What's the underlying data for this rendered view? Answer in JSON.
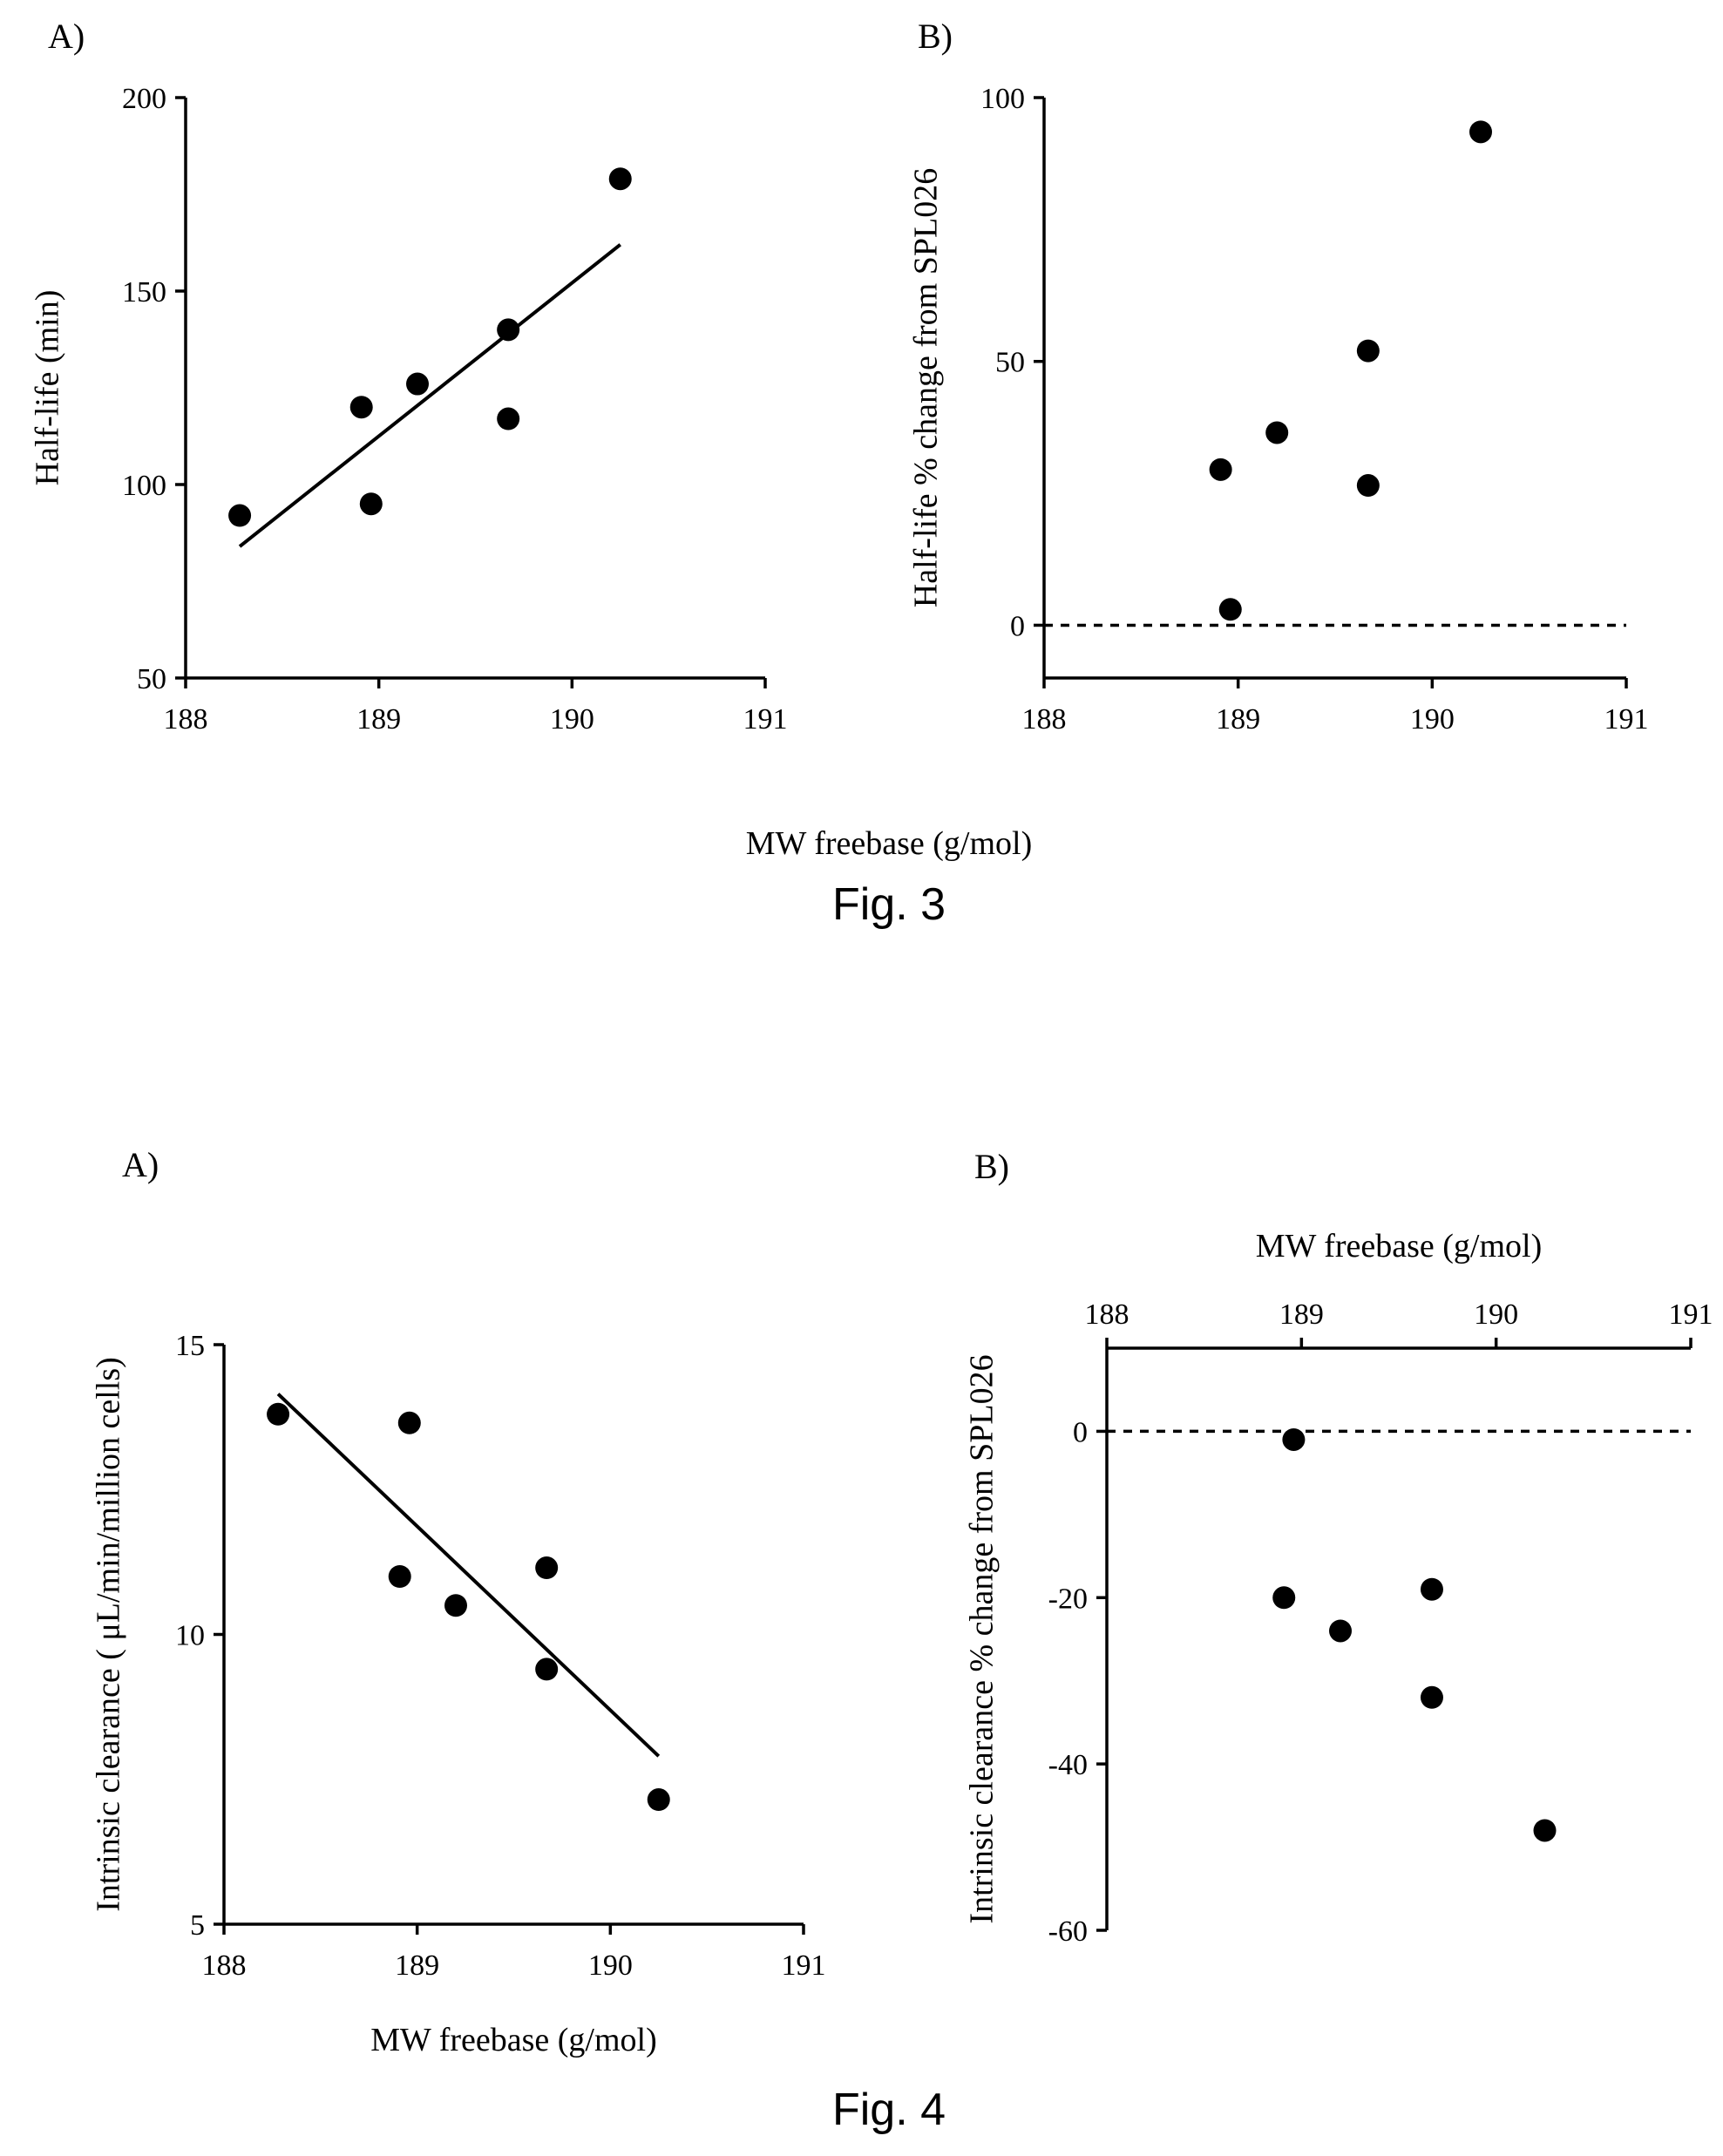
{
  "fig3": {
    "caption": "Fig. 3",
    "shared_xlabel": "MW freebase (g/mol)"
  },
  "fig4": {
    "caption": "Fig. 4"
  },
  "chart_data": [
    {
      "id": "fig3a",
      "type": "scatter",
      "panel_label": "A)",
      "title": "",
      "xlabel": "",
      "ylabel": "Half-life (min)",
      "xlim": [
        188,
        191
      ],
      "ylim": [
        50,
        200
      ],
      "xticks": [
        188,
        189,
        190,
        191
      ],
      "xtick_labels": [
        "188",
        "189",
        "190",
        "191"
      ],
      "yticks": [
        50,
        100,
        150,
        200
      ],
      "ytick_labels": [
        "50",
        "100",
        "150",
        "200"
      ],
      "x_axis_position": "bottom",
      "points": [
        {
          "x": 188.28,
          "y": 92
        },
        {
          "x": 188.91,
          "y": 120
        },
        {
          "x": 188.96,
          "y": 95
        },
        {
          "x": 189.2,
          "y": 126
        },
        {
          "x": 189.67,
          "y": 117
        },
        {
          "x": 189.67,
          "y": 140
        },
        {
          "x": 190.25,
          "y": 179
        }
      ],
      "fit_line": {
        "x": [
          188.28,
          190.25
        ],
        "y": [
          84,
          162
        ]
      },
      "grid": false
    },
    {
      "id": "fig3b",
      "type": "scatter",
      "panel_label": "B)",
      "title": "",
      "xlabel": "",
      "ylabel": "Half-life % change from SPL026",
      "xlim": [
        188,
        191
      ],
      "ylim": [
        -10,
        100
      ],
      "xticks": [
        188,
        189,
        190,
        191
      ],
      "xtick_labels": [
        "188",
        "189",
        "190",
        "191"
      ],
      "yticks": [
        0,
        50,
        100
      ],
      "ytick_labels": [
        "0",
        "50",
        "100"
      ],
      "x_axis_position": "bottom",
      "points": [
        {
          "x": 188.91,
          "y": 29.5
        },
        {
          "x": 188.96,
          "y": 3
        },
        {
          "x": 189.2,
          "y": 36.5
        },
        {
          "x": 189.67,
          "y": 26.5
        },
        {
          "x": 189.67,
          "y": 52
        },
        {
          "x": 190.25,
          "y": 93.5
        }
      ],
      "reference_line": {
        "y": 0,
        "style": "dashed"
      },
      "grid": false
    },
    {
      "id": "fig4a",
      "type": "scatter",
      "panel_label": "A)",
      "title": "",
      "xlabel": "MW freebase (g/mol)",
      "ylabel": "Intrinsic clearance ( μL/min/million cells)",
      "xlim": [
        188,
        191
      ],
      "ylim": [
        5,
        15
      ],
      "xticks": [
        188,
        189,
        190,
        191
      ],
      "xtick_labels": [
        "188",
        "189",
        "190",
        "191"
      ],
      "yticks": [
        5,
        10,
        15
      ],
      "ytick_labels": [
        "5",
        "10",
        "15"
      ],
      "x_axis_position": "bottom",
      "points": [
        {
          "x": 188.28,
          "y": 13.8
        },
        {
          "x": 188.91,
          "y": 11
        },
        {
          "x": 188.96,
          "y": 13.65
        },
        {
          "x": 189.2,
          "y": 10.5
        },
        {
          "x": 189.67,
          "y": 9.4
        },
        {
          "x": 189.67,
          "y": 11.15
        },
        {
          "x": 190.25,
          "y": 7.15
        }
      ],
      "fit_line": {
        "x": [
          188.28,
          190.25
        ],
        "y": [
          14.15,
          7.9
        ]
      },
      "grid": false
    },
    {
      "id": "fig4b",
      "type": "scatter",
      "panel_label": "B)",
      "title": "",
      "xlabel": "MW freebase (g/mol)",
      "ylabel": "Intrinsic clearance % change from SPL026",
      "xlim": [
        188,
        191
      ],
      "ylim": [
        -60,
        10
      ],
      "xticks": [
        188,
        189,
        190,
        191
      ],
      "xtick_labels": [
        "188",
        "189",
        "190",
        "191"
      ],
      "yticks": [
        -60,
        -40,
        -20,
        0
      ],
      "ytick_labels": [
        "-60",
        "-40",
        "-20",
        "0"
      ],
      "x_axis_position": "top",
      "points": [
        {
          "x": 188.91,
          "y": -20
        },
        {
          "x": 188.96,
          "y": -1
        },
        {
          "x": 189.2,
          "y": -24
        },
        {
          "x": 189.67,
          "y": -32
        },
        {
          "x": 189.67,
          "y": -19
        },
        {
          "x": 190.25,
          "y": -48
        }
      ],
      "reference_line": {
        "y": 0,
        "style": "dashed"
      },
      "grid": false
    }
  ]
}
